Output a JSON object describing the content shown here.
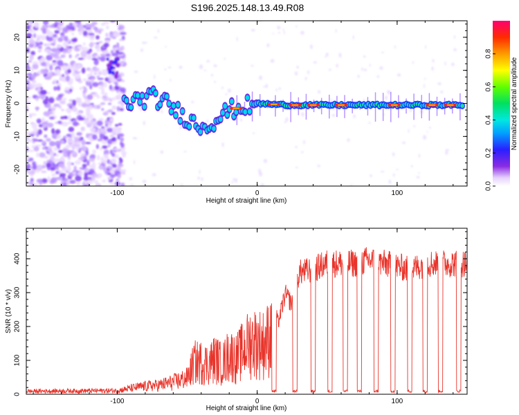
{
  "title": "S196.2025.148.13.49.R08",
  "chart_data": [
    {
      "type": "heatmap",
      "title": "S196.2025.148.13.49.R08",
      "xlabel": "Height of straight line (km)",
      "ylabel": "Frequency (Hz)",
      "xlim": [
        -165,
        150
      ],
      "ylim": [
        -25,
        25
      ],
      "xticks": [
        "-100",
        "0",
        "100"
      ],
      "yticks": [
        "-20",
        "-10",
        "0",
        "10",
        "20"
      ],
      "colorbar": {
        "label": "Normalized spectral amplitude",
        "range": [
          0.0,
          1.0
        ],
        "ticks": [
          "0.0",
          "0.2",
          "0.4",
          "0.6",
          "0.8"
        ]
      },
      "ridge": {
        "x": [
          -95,
          -85,
          -75,
          -65,
          -55,
          -45,
          -38,
          -30,
          -20,
          -10,
          0,
          20,
          50,
          80,
          110,
          150
        ],
        "y": [
          0,
          1,
          2,
          0,
          -3,
          -6,
          -7,
          -5,
          -2,
          -1,
          0,
          -0.5,
          -0.5,
          -0.5,
          -0.5,
          -0.5
        ]
      }
    },
    {
      "type": "line",
      "xlabel": "Height of straight line (km)",
      "ylabel": "SNR (10 * v/v)",
      "xlim": [
        -165,
        150
      ],
      "ylim": [
        0,
        490
      ],
      "xticks": [
        "-100",
        "0",
        "100"
      ],
      "yticks": [
        "0",
        "100",
        "200",
        "300",
        "400"
      ],
      "series": [
        {
          "color": "#e8332a",
          "envelope_x": [
            -165,
            -100,
            -90,
            -80,
            -70,
            -60,
            -50,
            -45,
            -40,
            -35,
            -30,
            -25,
            -20,
            -15,
            -10,
            -5,
            0,
            5,
            10,
            15,
            20,
            25,
            30,
            40,
            50,
            60,
            70,
            80,
            90,
            100,
            110,
            120,
            130,
            140,
            150
          ],
          "envelope_y": [
            15,
            18,
            30,
            40,
            45,
            60,
            80,
            160,
            160,
            150,
            180,
            150,
            200,
            180,
            220,
            260,
            260,
            250,
            300,
            230,
            320,
            290,
            390,
            400,
            420,
            420,
            420,
            430,
            420,
            410,
            400,
            420,
            420,
            420,
            420
          ],
          "dropouts_x": [
            12,
            27,
            40,
            52,
            63,
            73,
            85,
            97,
            109,
            120,
            131,
            144
          ]
        }
      ]
    }
  ]
}
